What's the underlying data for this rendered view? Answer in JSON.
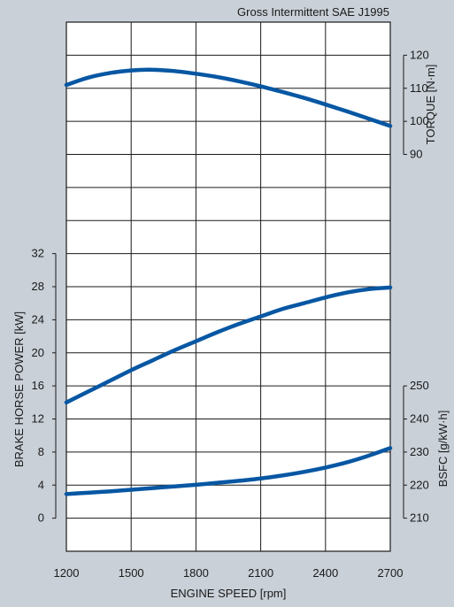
{
  "chart_data": {
    "type": "line",
    "title": "Gross Intermittent SAE J1995",
    "xlabel": "ENGINE SPEED [rpm]",
    "xlim": [
      1200,
      2700
    ],
    "x_ticks": [
      "1200",
      "1500",
      "1800",
      "2100",
      "2400",
      "2700"
    ],
    "grid": true,
    "series": [
      {
        "axis": "torque",
        "x": [
          1200,
          1300,
          1400,
          1500,
          1600,
          1700,
          1800,
          1900,
          2000,
          2100,
          2200,
          2300,
          2400,
          2500,
          2600,
          2700
        ],
        "values": [
          111,
          113.2,
          114.6,
          115.4,
          115.6,
          115.2,
          114.4,
          113.4,
          112.1,
          110.6,
          108.9,
          107.1,
          105.1,
          103.0,
          100.8,
          98.6
        ]
      },
      {
        "axis": "power",
        "x": [
          1200,
          1300,
          1400,
          1500,
          1600,
          1700,
          1800,
          1900,
          2000,
          2100,
          2200,
          2300,
          2400,
          2500,
          2600,
          2700
        ],
        "values": [
          14.0,
          15.3,
          16.6,
          17.9,
          19.1,
          20.3,
          21.4,
          22.5,
          23.5,
          24.4,
          25.3,
          26.0,
          26.7,
          27.3,
          27.7,
          27.9
        ]
      },
      {
        "axis": "bsfc",
        "x": [
          1200,
          1300,
          1400,
          1500,
          1600,
          1700,
          1800,
          1900,
          2000,
          2100,
          2200,
          2300,
          2400,
          2500,
          2600,
          2700
        ],
        "values": [
          217.3,
          217.7,
          218.1,
          218.6,
          219.1,
          219.6,
          220.1,
          220.7,
          221.3,
          222.0,
          222.9,
          224.0,
          225.3,
          226.9,
          228.9,
          231.2
        ]
      }
    ],
    "axes": {
      "torque": {
        "label": "TORQUE [N·m]",
        "range": [
          90,
          120
        ],
        "ticks": [
          "90",
          "100",
          "110",
          "120"
        ],
        "side": "right"
      },
      "power": {
        "label": "BRAKE HORSE POWER [kW]",
        "range": [
          0,
          32
        ],
        "ticks": [
          "0",
          "4",
          "8",
          "12",
          "16",
          "20",
          "24",
          "28",
          "32"
        ],
        "side": "left"
      },
      "bsfc": {
        "label": "BSFC [g/kW·h]",
        "range": [
          210,
          250
        ],
        "ticks": [
          "210",
          "220",
          "230",
          "240",
          "250"
        ],
        "side": "right"
      }
    },
    "colors": {
      "line": "#0757a3",
      "grid": "#1a1a1a",
      "plot_bg": "#ffffff",
      "page_bg": "#c9d0d8"
    }
  }
}
